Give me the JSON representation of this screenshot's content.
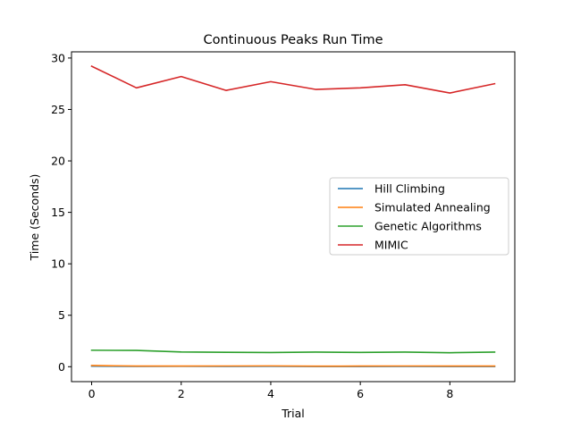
{
  "chart_data": {
    "type": "line",
    "title": "Continuous Peaks Run Time",
    "xlabel": "Trial",
    "ylabel": "Time (Seconds)",
    "xlim": [
      -0.45,
      9.45
    ],
    "ylim": [
      -1.45,
      30.6
    ],
    "xticks": [
      0,
      2,
      4,
      6,
      8
    ],
    "yticks": [
      0,
      5,
      10,
      15,
      20,
      25,
      30
    ],
    "grid": false,
    "legend_position": "center-right",
    "x": [
      0,
      1,
      2,
      3,
      4,
      5,
      6,
      7,
      8,
      9
    ],
    "series": [
      {
        "name": "Hill Climbing",
        "color": "#1f77b4",
        "values": [
          0.05,
          0.03,
          0.04,
          0.03,
          0.04,
          0.02,
          0.02,
          0.03,
          0.02,
          0.02
        ]
      },
      {
        "name": "Simulated Annealing",
        "color": "#ff7f0e",
        "values": [
          0.12,
          0.06,
          0.06,
          0.07,
          0.08,
          0.05,
          0.06,
          0.07,
          0.06,
          0.06
        ]
      },
      {
        "name": "Genetic Algorithms",
        "color": "#2ca02c",
        "values": [
          1.6,
          1.58,
          1.43,
          1.4,
          1.38,
          1.42,
          1.39,
          1.42,
          1.36,
          1.42
        ]
      },
      {
        "name": "MIMIC",
        "color": "#d62728",
        "values": [
          29.2,
          27.1,
          28.2,
          26.85,
          27.7,
          26.95,
          27.1,
          27.4,
          26.6,
          27.5
        ]
      }
    ]
  }
}
